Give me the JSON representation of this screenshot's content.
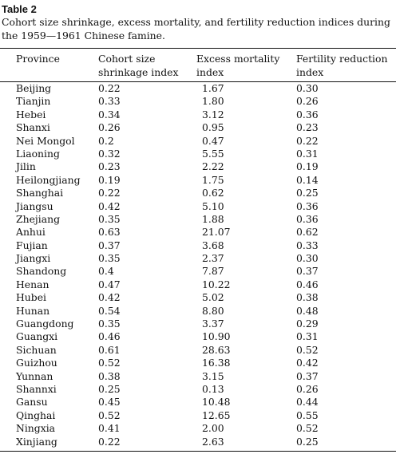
{
  "table": {
    "label": "Table 2",
    "caption": "Cohort size shrinkage, excess mortality, and fertility reduction indices during the 1959—1961 Chinese famine.",
    "headers": {
      "province": "Province",
      "cohort": "Cohort size\nshrinkage index",
      "excess": "Excess mortality\n index",
      "fertility": "Fertility reduction\nindex"
    },
    "rows": [
      {
        "province": "Beijing",
        "cohort": "0.22",
        "excess": "1.67",
        "fertility": "0.30"
      },
      {
        "province": "Tianjin",
        "cohort": "0.33",
        "excess": "1.80",
        "fertility": "0.26"
      },
      {
        "province": "Hebei",
        "cohort": "0.34",
        "excess": "3.12",
        "fertility": "0.36"
      },
      {
        "province": "Shanxi",
        "cohort": "0.26",
        "excess": "0.95",
        "fertility": "0.23"
      },
      {
        "province": "Nei Mongol",
        "cohort": "0.2",
        "excess": "0.47",
        "fertility": "0.22"
      },
      {
        "province": "Liaoning",
        "cohort": "0.32",
        "excess": "5.55",
        "fertility": "0.31"
      },
      {
        "province": "Jilin",
        "cohort": "0.23",
        "excess": "2.22",
        "fertility": "0.19"
      },
      {
        "province": "Heilongjiang",
        "cohort": "0.19",
        "excess": "1.75",
        "fertility": "0.14"
      },
      {
        "province": "Shanghai",
        "cohort": "0.22",
        "excess": "0.62",
        "fertility": "0.25"
      },
      {
        "province": "Jiangsu",
        "cohort": "0.42",
        "excess": "5.10",
        "fertility": "0.36"
      },
      {
        "province": "Zhejiang",
        "cohort": "0.35",
        "excess": "1.88",
        "fertility": "0.36"
      },
      {
        "province": "Anhui",
        "cohort": "0.63",
        "excess": "21.07",
        "fertility": "0.62"
      },
      {
        "province": "Fujian",
        "cohort": "0.37",
        "excess": "3.68",
        "fertility": "0.33"
      },
      {
        "province": "Jiangxi",
        "cohort": "0.35",
        "excess": "2.37",
        "fertility": "0.30"
      },
      {
        "province": "Shandong",
        "cohort": "0.4",
        "excess": "7.87",
        "fertility": "0.37"
      },
      {
        "province": "Henan",
        "cohort": "0.47",
        "excess": "10.22",
        "fertility": "0.46"
      },
      {
        "province": "Hubei",
        "cohort": "0.42",
        "excess": "5.02",
        "fertility": "0.38"
      },
      {
        "province": "Hunan",
        "cohort": "0.54",
        "excess": "8.80",
        "fertility": "0.48"
      },
      {
        "province": "Guangdong",
        "cohort": "0.35",
        "excess": "3.37",
        "fertility": "0.29"
      },
      {
        "province": "Guangxi",
        "cohort": "0.46",
        "excess": "10.90",
        "fertility": "0.31"
      },
      {
        "province": "Sichuan",
        "cohort": "0.61",
        "excess": "28.63",
        "fertility": "0.52"
      },
      {
        "province": "Guizhou",
        "cohort": "0.52",
        "excess": "16.38",
        "fertility": "0.42"
      },
      {
        "province": "Yunnan",
        "cohort": "0.38",
        "excess": "3.15",
        "fertility": "0.37"
      },
      {
        "province": "Shannxi",
        "cohort": "0.25",
        "excess": "0.13",
        "fertility": "0.26"
      },
      {
        "province": "Gansu",
        "cohort": "0.45",
        "excess": "10.48",
        "fertility": "0.44"
      },
      {
        "province": "Qinghai",
        "cohort": "0.52",
        "excess": "12.65",
        "fertility": "0.55"
      },
      {
        "province": "Ningxia",
        "cohort": "0.41",
        "excess": "2.00",
        "fertility": "0.52"
      },
      {
        "province": "Xinjiang",
        "cohort": "0.22",
        "excess": "2.63",
        "fertility": "0.25"
      }
    ]
  }
}
